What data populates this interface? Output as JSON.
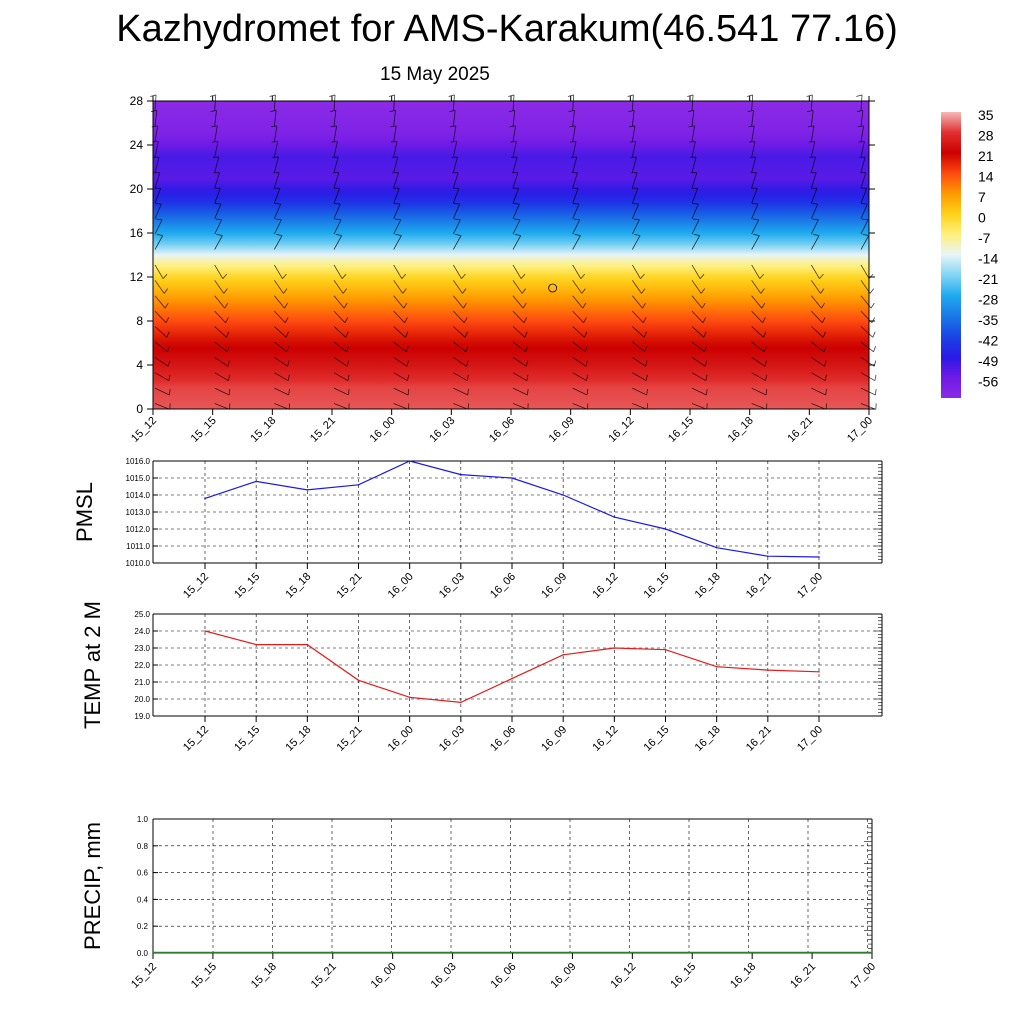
{
  "title": "Kazhydromet for AMS-Karakum(46.541 77.16)",
  "date": "15 May 2025",
  "time_labels": [
    "15_12",
    "15_15",
    "15_18",
    "15_21",
    "16_00",
    "16_03",
    "16_06",
    "16_09",
    "16_12",
    "16_15",
    "16_18",
    "16_21",
    "17_00"
  ],
  "colors": {
    "pmsl_line": "#1a1ae6",
    "temp_line": "#e61a1a",
    "precip_line": "#2e7d32"
  },
  "chart_data": [
    {
      "id": "vertical-section",
      "type": "heatmap",
      "ylim": [
        0,
        28
      ],
      "yticks": [
        0,
        4,
        8,
        12,
        16,
        20,
        24,
        28
      ],
      "x": [
        "15_12",
        "15_15",
        "15_18",
        "15_21",
        "16_00",
        "16_03",
        "16_06",
        "16_09",
        "16_12",
        "16_15",
        "16_18",
        "16_21",
        "17_00"
      ],
      "colorbar_labels": [
        "35",
        "28",
        "21",
        "14",
        "7",
        "0",
        "-7",
        "-14",
        "-21",
        "-28",
        "-35",
        "-42",
        "-49",
        "-56"
      ],
      "colorbar_stops": [
        {
          "v": 35,
          "c": "#f4b8b8"
        },
        {
          "v": 28,
          "c": "#e23030"
        },
        {
          "v": 21,
          "c": "#cc0000"
        },
        {
          "v": 14,
          "c": "#ff4a10"
        },
        {
          "v": 7,
          "c": "#ff9a00"
        },
        {
          "v": 0,
          "c": "#ffd21a"
        },
        {
          "v": -7,
          "c": "#fff080"
        },
        {
          "v": -14,
          "c": "#e8f4f8"
        },
        {
          "v": -21,
          "c": "#80d4f4"
        },
        {
          "v": -28,
          "c": "#1eaaee"
        },
        {
          "v": -35,
          "c": "#1a78e6"
        },
        {
          "v": -42,
          "c": "#1a44e6"
        },
        {
          "v": -49,
          "c": "#2a1ae6"
        },
        {
          "v": -56,
          "c": "#6f1ae6"
        },
        {
          "v": -63,
          "c": "#8a2ae6"
        }
      ],
      "temperature_by_height": [
        {
          "h": 0,
          "t": 30
        },
        {
          "h": 2,
          "t": 29
        },
        {
          "h": 4,
          "t": 24
        },
        {
          "h": 6,
          "t": 20
        },
        {
          "h": 8,
          "t": 14
        },
        {
          "h": 10,
          "t": 7
        },
        {
          "h": 12,
          "t": -1
        },
        {
          "h": 13.5,
          "t": -10
        },
        {
          "h": 15,
          "t": -22
        },
        {
          "h": 17,
          "t": -34
        },
        {
          "h": 19,
          "t": -46
        },
        {
          "h": 21,
          "t": -54
        },
        {
          "h": 23,
          "t": -52
        },
        {
          "h": 25,
          "t": -60
        },
        {
          "h": 28,
          "t": -63
        }
      ]
    },
    {
      "id": "pmsl",
      "type": "line",
      "ylabel": "PMSL",
      "ylim": [
        1010.0,
        1016.0
      ],
      "yticks": [
        "1010.0",
        "1011.0",
        "1012.0",
        "1013.0",
        "1014.0",
        "1015.0",
        "1016.0"
      ],
      "x": [
        "15_12",
        "15_15",
        "15_18",
        "15_21",
        "16_00",
        "16_03",
        "16_06",
        "16_09",
        "16_12",
        "16_15",
        "16_18",
        "16_21",
        "17_00"
      ],
      "values": [
        1013.8,
        1014.8,
        1014.3,
        1014.6,
        1016.0,
        1015.2,
        1015.0,
        1014.0,
        1012.7,
        1012.0,
        1010.9,
        1010.4,
        1010.35
      ]
    },
    {
      "id": "temp2m",
      "type": "line",
      "ylabel": "TEMP at 2 M",
      "ylim": [
        19.0,
        25.0
      ],
      "yticks": [
        "19.0",
        "20.0",
        "21.0",
        "22.0",
        "23.0",
        "24.0",
        "25.0"
      ],
      "x": [
        "15_12",
        "15_15",
        "15_18",
        "15_21",
        "16_00",
        "16_03",
        "16_06",
        "16_09",
        "16_12",
        "16_15",
        "16_18",
        "16_21",
        "17_00"
      ],
      "values": [
        24.0,
        23.2,
        23.2,
        21.1,
        20.1,
        19.8,
        21.2,
        22.6,
        23.0,
        22.9,
        21.9,
        21.7,
        21.6
      ]
    },
    {
      "id": "precip",
      "type": "line",
      "ylabel": "PRECIP, mm",
      "ylim": [
        0.0,
        1.0
      ],
      "yticks": [
        "0.0",
        "0.2",
        "0.4",
        "0.6",
        "0.8",
        "1.0"
      ],
      "x": [
        "15_12",
        "15_15",
        "15_18",
        "15_21",
        "16_00",
        "16_03",
        "16_06",
        "16_09",
        "16_12",
        "16_15",
        "16_18",
        "16_21",
        "17_00"
      ],
      "values": [
        0,
        0,
        0,
        0,
        0,
        0,
        0,
        0,
        0,
        0,
        0,
        0,
        0
      ]
    }
  ]
}
